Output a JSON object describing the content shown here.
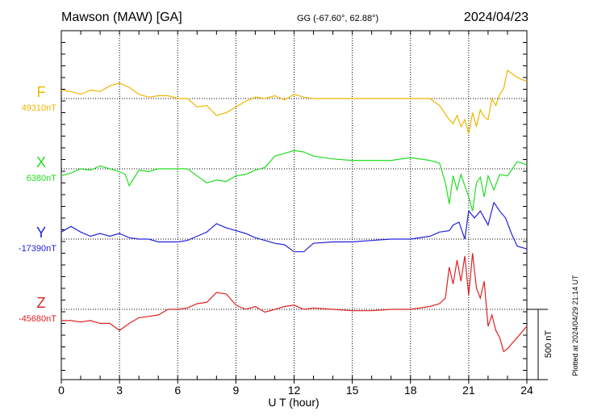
{
  "header": {
    "station": "Mawson (MAW)  [GA]",
    "coords": "GG (-67.60°,  62.88°)",
    "date": "2024/04/23"
  },
  "plotted_note": "Plotted at 2024/04/29 21:14 UT",
  "scale_label": "500 nT",
  "chart_data": {
    "type": "line",
    "xlabel": "U T (hour)",
    "xlim": [
      0,
      24
    ],
    "xticks": [
      0,
      3,
      6,
      9,
      12,
      15,
      18,
      21,
      24
    ],
    "x_tick_labels": [
      "0",
      "3",
      "6",
      "9",
      "12",
      "15",
      "18",
      "21",
      "24"
    ],
    "scale_bar_nT": 500,
    "series": [
      {
        "name": "F",
        "baseline_label": "49310nT",
        "baseline_nT": 49310,
        "color": "#f0b400",
        "hours": [
          0,
          0.5,
          1,
          1.5,
          2,
          2.5,
          3,
          3.5,
          4,
          4.5,
          5,
          5.5,
          6,
          6.5,
          7,
          7.5,
          8,
          8.5,
          9,
          9.5,
          10,
          10.5,
          11,
          11.5,
          12,
          12.5,
          13,
          14,
          15,
          16,
          17,
          18,
          19,
          19.5,
          20,
          20.2,
          20.4,
          20.6,
          20.8,
          21,
          21.2,
          21.4,
          21.6,
          21.8,
          22,
          22.2,
          22.4,
          22.6,
          22.8,
          23,
          23.5,
          24
        ],
        "offset_nT": [
          60,
          50,
          30,
          60,
          50,
          90,
          110,
          80,
          30,
          10,
          20,
          20,
          0,
          0,
          -60,
          -50,
          -120,
          -100,
          -60,
          -20,
          10,
          0,
          20,
          -10,
          30,
          10,
          0,
          0,
          0,
          0,
          0,
          0,
          0,
          -50,
          -150,
          -180,
          -120,
          -200,
          -150,
          -250,
          -100,
          -200,
          -80,
          -130,
          -150,
          0,
          -50,
          30,
          70,
          200,
          150,
          120
        ]
      },
      {
        "name": "X",
        "baseline_label": "6380nT",
        "baseline_nT": 6380,
        "color": "#22dd22",
        "hours": [
          0,
          0.5,
          1,
          1.5,
          2,
          2.5,
          3,
          3.3,
          3.5,
          4,
          4.5,
          5,
          6,
          6.5,
          7,
          7.5,
          8,
          8.5,
          9,
          9.5,
          10,
          10.5,
          11,
          11.5,
          12,
          12.5,
          13,
          14,
          15,
          16,
          17,
          18,
          19,
          19.5,
          19.8,
          20,
          20.2,
          20.4,
          20.6,
          20.8,
          21,
          21.2,
          21.4,
          21.6,
          21.8,
          22,
          22.3,
          22.6,
          23,
          23.5,
          24
        ],
        "offset_nT": [
          -50,
          -30,
          0,
          -10,
          20,
          0,
          -20,
          -40,
          -120,
          -10,
          -20,
          0,
          0,
          0,
          -50,
          -100,
          -80,
          -90,
          -50,
          -40,
          -10,
          10,
          90,
          110,
          130,
          120,
          90,
          70,
          60,
          60,
          60,
          80,
          60,
          40,
          -100,
          -250,
          -50,
          -150,
          -40,
          -120,
          -200,
          -300,
          -100,
          -60,
          -200,
          -50,
          -150,
          -40,
          -50,
          50,
          30
        ]
      },
      {
        "name": "Y",
        "baseline_label": "-17390nT",
        "baseline_nT": -17390,
        "color": "#2222dd",
        "hours": [
          0,
          0.5,
          1,
          1.5,
          2,
          2.5,
          3,
          3.5,
          4,
          4.5,
          5,
          6,
          6.5,
          7,
          7.5,
          8,
          8.5,
          9,
          9.5,
          10,
          10.5,
          11,
          11.5,
          12,
          12.5,
          13,
          14,
          15,
          16,
          17,
          18,
          19,
          19.5,
          20,
          20.2,
          20.5,
          20.8,
          21,
          21.3,
          21.6,
          22,
          22.3,
          22.6,
          22.9,
          23.2,
          23.5,
          24
        ],
        "offset_nT": [
          50,
          90,
          50,
          20,
          40,
          20,
          40,
          10,
          0,
          0,
          -20,
          -20,
          -10,
          20,
          50,
          110,
          80,
          60,
          40,
          10,
          -10,
          -30,
          -40,
          -90,
          -90,
          -30,
          -20,
          -20,
          -10,
          0,
          0,
          20,
          50,
          60,
          100,
          120,
          0,
          200,
          150,
          200,
          100,
          260,
          200,
          150,
          40,
          -50,
          -70
        ]
      },
      {
        "name": "Z",
        "baseline_label": "-45680nT",
        "baseline_nT": -45680,
        "color": "#dd2222",
        "hours": [
          0,
          0.5,
          1,
          1.5,
          2,
          2.5,
          3,
          3.5,
          4,
          4.5,
          5,
          5.5,
          6,
          6.5,
          7,
          7.5,
          8,
          8.5,
          9,
          9.5,
          10,
          10.5,
          11,
          11.5,
          12,
          12.5,
          13,
          14,
          15,
          16,
          17,
          18,
          19,
          19.5,
          19.8,
          20,
          20.2,
          20.4,
          20.6,
          20.8,
          21,
          21.2,
          21.4,
          21.6,
          21.8,
          22,
          22.2,
          22.4,
          22.6,
          22.8,
          23,
          23.5,
          24
        ],
        "offset_nT": [
          -80,
          -80,
          -90,
          -80,
          -100,
          -100,
          -150,
          -100,
          -60,
          -50,
          -40,
          0,
          0,
          10,
          40,
          50,
          120,
          110,
          30,
          0,
          20,
          -20,
          0,
          20,
          30,
          0,
          10,
          0,
          -10,
          -10,
          0,
          0,
          20,
          40,
          80,
          300,
          180,
          350,
          200,
          380,
          100,
          400,
          150,
          80,
          200,
          -120,
          -40,
          -150,
          -200,
          -300,
          -280,
          -200,
          -120
        ]
      }
    ]
  }
}
